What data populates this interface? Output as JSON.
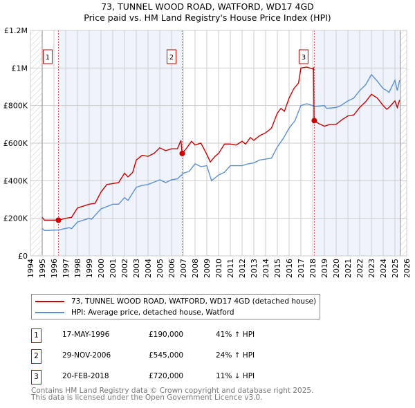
{
  "chart_data": {
    "type": "line",
    "title": "73, TUNNEL WOOD ROAD, WATFORD, WD17 4GD",
    "subtitle": "Price paid vs. HM Land Registry's House Price Index (HPI)",
    "xlim": [
      1994,
      2026
    ],
    "ylim": [
      0,
      1200000
    ],
    "x_ticks": [
      "1994",
      "1995",
      "1996",
      "1997",
      "1998",
      "1999",
      "2000",
      "2001",
      "2002",
      "2003",
      "2004",
      "2005",
      "2006",
      "2007",
      "2008",
      "2009",
      "2010",
      "2011",
      "2012",
      "2013",
      "2014",
      "2015",
      "2016",
      "2017",
      "2018",
      "2019",
      "2020",
      "2021",
      "2022",
      "2023",
      "2024",
      "2025",
      "2026"
    ],
    "y_ticks": [
      {
        "v": 0,
        "label": "£0"
      },
      {
        "v": 200000,
        "label": "£200K"
      },
      {
        "v": 400000,
        "label": "£400K"
      },
      {
        "v": 600000,
        "label": "£600K"
      },
      {
        "v": 800000,
        "label": "£800K"
      },
      {
        "v": 1000000,
        "label": "£1M"
      },
      {
        "v": 1200000,
        "label": "£1.2M"
      }
    ],
    "grid": true,
    "series": [
      {
        "name": "73, TUNNEL WOOD ROAD, WATFORD, WD17 4GD (detached house)",
        "color": "#cc0000",
        "points": [
          [
            1995,
            205000
          ],
          [
            1995.2,
            190000
          ],
          [
            1996.4,
            190000
          ],
          [
            1997,
            200000
          ],
          [
            1997.5,
            205000
          ],
          [
            1998,
            255000
          ],
          [
            1999,
            275000
          ],
          [
            1999.5,
            280000
          ],
          [
            2000,
            340000
          ],
          [
            2000.5,
            380000
          ],
          [
            2001,
            385000
          ],
          [
            2001.5,
            390000
          ],
          [
            2002,
            440000
          ],
          [
            2002.3,
            420000
          ],
          [
            2002.7,
            445000
          ],
          [
            2003,
            510000
          ],
          [
            2003.5,
            535000
          ],
          [
            2004,
            530000
          ],
          [
            2004.5,
            545000
          ],
          [
            2005,
            575000
          ],
          [
            2005.5,
            560000
          ],
          [
            2006,
            570000
          ],
          [
            2006.5,
            570000
          ],
          [
            2006.8,
            615000
          ],
          [
            2006.9,
            545000
          ],
          [
            2007.3,
            575000
          ],
          [
            2007.7,
            610000
          ],
          [
            2008,
            590000
          ],
          [
            2008.5,
            600000
          ],
          [
            2009,
            540000
          ],
          [
            2009.3,
            500000
          ],
          [
            2009.7,
            530000
          ],
          [
            2010,
            545000
          ],
          [
            2010.5,
            595000
          ],
          [
            2011,
            595000
          ],
          [
            2011.5,
            590000
          ],
          [
            2012,
            610000
          ],
          [
            2012.3,
            595000
          ],
          [
            2012.7,
            630000
          ],
          [
            2013,
            615000
          ],
          [
            2013.5,
            640000
          ],
          [
            2014,
            655000
          ],
          [
            2014.5,
            680000
          ],
          [
            2015,
            760000
          ],
          [
            2015.3,
            785000
          ],
          [
            2015.6,
            770000
          ],
          [
            2016,
            840000
          ],
          [
            2016.4,
            890000
          ],
          [
            2016.8,
            920000
          ],
          [
            2017,
            1000000
          ],
          [
            2017.5,
            1005000
          ],
          [
            2018,
            995000
          ],
          [
            2018.08,
            1000000
          ],
          [
            2018.12,
            720000
          ],
          [
            2018.5,
            705000
          ],
          [
            2019,
            690000
          ],
          [
            2019.5,
            700000
          ],
          [
            2020,
            700000
          ],
          [
            2020.5,
            725000
          ],
          [
            2021,
            745000
          ],
          [
            2021.5,
            750000
          ],
          [
            2022,
            790000
          ],
          [
            2022.5,
            820000
          ],
          [
            2023,
            860000
          ],
          [
            2023.5,
            840000
          ],
          [
            2024,
            800000
          ],
          [
            2024.3,
            780000
          ],
          [
            2024.5,
            790000
          ],
          [
            2025,
            825000
          ],
          [
            2025.2,
            790000
          ],
          [
            2025.4,
            830000
          ]
        ]
      },
      {
        "name": "HPI: Average price, detached house, Watford",
        "color": "#5b8fd4",
        "points": [
          [
            1995,
            145000
          ],
          [
            1995.2,
            135000
          ],
          [
            1996.4,
            138000
          ],
          [
            1997.3,
            150000
          ],
          [
            1997.5,
            145000
          ],
          [
            1998,
            180000
          ],
          [
            1999,
            200000
          ],
          [
            1999.2,
            195000
          ],
          [
            2000,
            250000
          ],
          [
            2001,
            275000
          ],
          [
            2001.5,
            275000
          ],
          [
            2002,
            310000
          ],
          [
            2002.3,
            295000
          ],
          [
            2003,
            365000
          ],
          [
            2003.5,
            375000
          ],
          [
            2004,
            380000
          ],
          [
            2005,
            405000
          ],
          [
            2005.5,
            390000
          ],
          [
            2006,
            405000
          ],
          [
            2006.5,
            410000
          ],
          [
            2007,
            440000
          ],
          [
            2007.5,
            450000
          ],
          [
            2008,
            490000
          ],
          [
            2008.5,
            475000
          ],
          [
            2009,
            480000
          ],
          [
            2009.2,
            440000
          ],
          [
            2009.4,
            400000
          ],
          [
            2010,
            430000
          ],
          [
            2010.5,
            445000
          ],
          [
            2011,
            480000
          ],
          [
            2012,
            480000
          ],
          [
            2012.5,
            490000
          ],
          [
            2013,
            495000
          ],
          [
            2013.5,
            510000
          ],
          [
            2014,
            515000
          ],
          [
            2014.5,
            520000
          ],
          [
            2015,
            580000
          ],
          [
            2015.5,
            625000
          ],
          [
            2016,
            680000
          ],
          [
            2016.5,
            720000
          ],
          [
            2017,
            800000
          ],
          [
            2017.5,
            810000
          ],
          [
            2018,
            800000
          ],
          [
            2018.2,
            795000
          ],
          [
            2019,
            800000
          ],
          [
            2019.2,
            785000
          ],
          [
            2020,
            790000
          ],
          [
            2020.4,
            800000
          ],
          [
            2021,
            825000
          ],
          [
            2021.5,
            840000
          ],
          [
            2022,
            880000
          ],
          [
            2022.5,
            910000
          ],
          [
            2023,
            965000
          ],
          [
            2023.5,
            930000
          ],
          [
            2024,
            890000
          ],
          [
            2024.3,
            880000
          ],
          [
            2024.5,
            870000
          ],
          [
            2025,
            935000
          ],
          [
            2025.2,
            880000
          ],
          [
            2025.4,
            935000
          ]
        ]
      }
    ],
    "sales": [
      {
        "label": "1",
        "x": 1996.38,
        "y": 190000
      },
      {
        "label": "2",
        "x": 2006.91,
        "y": 545000
      },
      {
        "label": "3",
        "x": 2018.14,
        "y": 720000
      }
    ],
    "data_end": 2025.45
  },
  "legend": [
    "73, TUNNEL WOOD ROAD, WATFORD, WD17 4GD (detached house)",
    "HPI: Average price, detached house, Watford"
  ],
  "transactions": [
    {
      "num": "1",
      "date": "17-MAY-1996",
      "price": "£190,000",
      "hpi": "41% ↑ HPI"
    },
    {
      "num": "2",
      "date": "29-NOV-2006",
      "price": "£545,000",
      "hpi": "24% ↑ HPI"
    },
    {
      "num": "3",
      "date": "20-FEB-2018",
      "price": "£720,000",
      "hpi": "11% ↓ HPI"
    }
  ],
  "footer": [
    "Contains HM Land Registry data © Crown copyright and database right 2025.",
    "This data is licensed under the Open Government Licence v3.0."
  ]
}
